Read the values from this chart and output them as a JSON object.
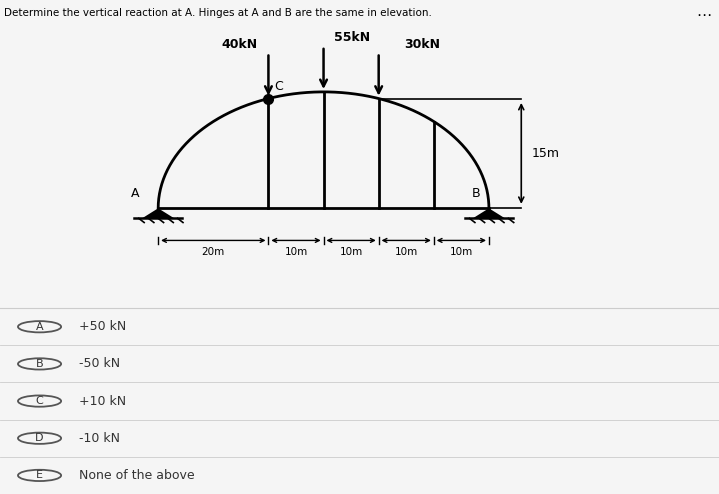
{
  "title": "Determine the vertical reaction at A. Hinges at A and B are the same in elevation.",
  "bg_top": "#f0f0f0",
  "bg_diagram": "#ffffff",
  "bg_options": "#f0f0f0",
  "options": [
    {
      "label": "A",
      "text": "+50 kN"
    },
    {
      "label": "B",
      "text": "-50 kN"
    },
    {
      "label": "C",
      "text": "+10 kN"
    },
    {
      "label": "D",
      "text": "-10 kN"
    },
    {
      "label": "E",
      "text": "None of the above"
    }
  ],
  "dim_labels": [
    "20m",
    "10m",
    "10m",
    "10m",
    "10m"
  ],
  "height_label": "15m",
  "load_labels": [
    "40kN",
    "55kN",
    "30kN"
  ],
  "hinge_labels": [
    "A",
    "B",
    "C"
  ]
}
